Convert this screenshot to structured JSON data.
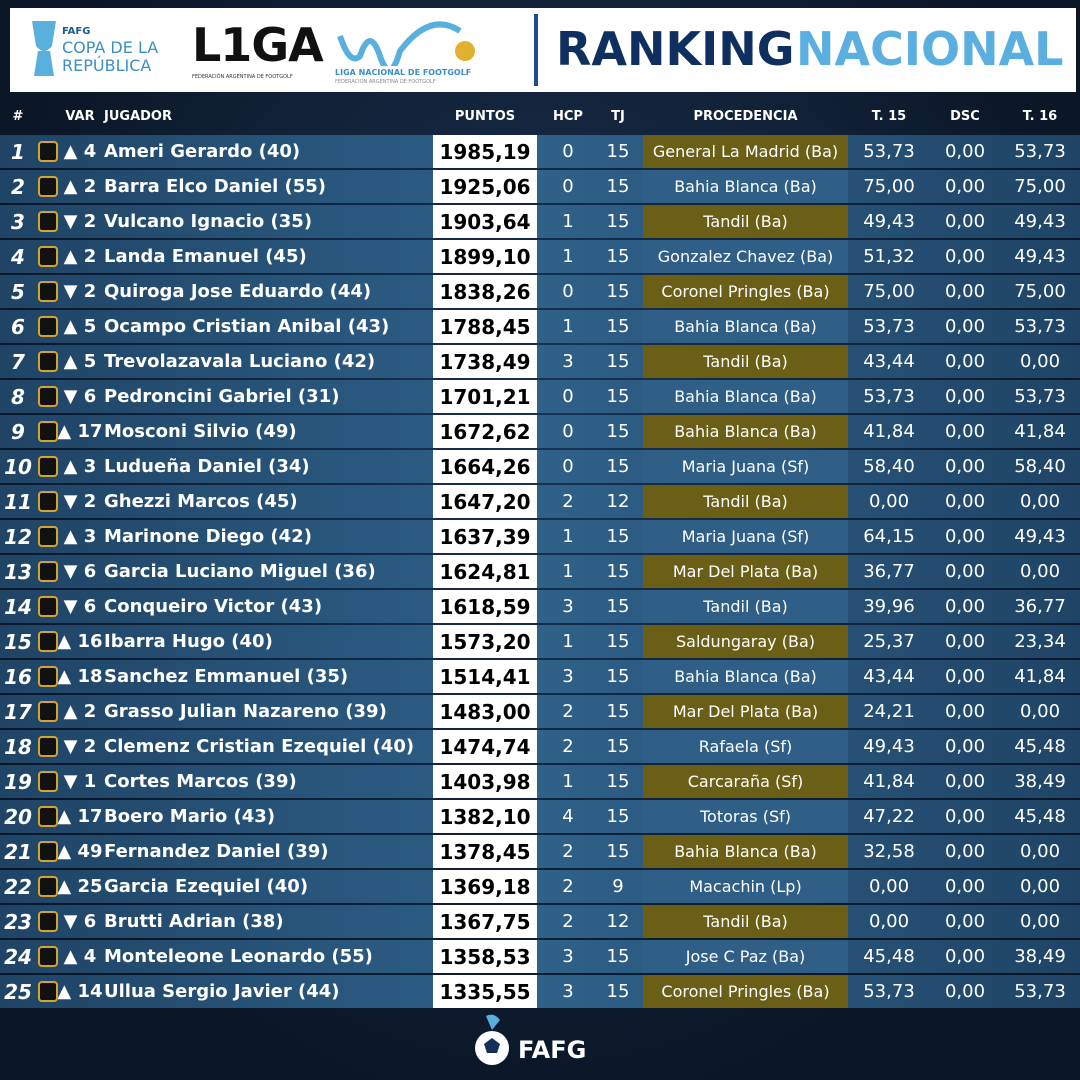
{
  "header": {
    "copa": {
      "fafg": "FAFG",
      "line1": "COPA DE LA",
      "line2": "REPÚBLICA"
    },
    "liga": {
      "name": "L1GA",
      "sub": "FEDERACIÓN ARGENTINA DE FOOTGOLF"
    },
    "liganac": {
      "name": "LIGA NACIONAL DE FOOTGOLF",
      "sub": "FEDERACION ARGENTINA DE FOOTGOLF"
    },
    "title1": "RANKING",
    "title2": "NACIONAL"
  },
  "table": {
    "columns": [
      "#",
      "VAR",
      "JUGADOR",
      "PUNTOS",
      "HCP",
      "TJ",
      "PROCEDENCIA",
      "T. 15",
      "DSC",
      "T. 16"
    ],
    "rows": [
      [
        "1",
        "▲ 4",
        "Ameri Gerardo (40)",
        "1985,19",
        "0",
        "15",
        "General La Madrid (Ba)",
        "53,73",
        "0,00",
        "53,73"
      ],
      [
        "2",
        "▲ 2",
        "Barra Elco Daniel (55)",
        "1925,06",
        "0",
        "15",
        "Bahia Blanca (Ba)",
        "75,00",
        "0,00",
        "75,00"
      ],
      [
        "3",
        "▼ 2",
        "Vulcano Ignacio (35)",
        "1903,64",
        "1",
        "15",
        "Tandil (Ba)",
        "49,43",
        "0,00",
        "49,43"
      ],
      [
        "4",
        "▲ 2",
        "Landa Emanuel (45)",
        "1899,10",
        "1",
        "15",
        "Gonzalez Chavez (Ba)",
        "51,32",
        "0,00",
        "49,43"
      ],
      [
        "5",
        "▼ 2",
        "Quiroga Jose Eduardo (44)",
        "1838,26",
        "0",
        "15",
        "Coronel Pringles (Ba)",
        "75,00",
        "0,00",
        "75,00"
      ],
      [
        "6",
        "▲ 5",
        "Ocampo Cristian Anibal (43)",
        "1788,45",
        "1",
        "15",
        "Bahia Blanca (Ba)",
        "53,73",
        "0,00",
        "53,73"
      ],
      [
        "7",
        "▲ 5",
        "Trevolazavala Luciano (42)",
        "1738,49",
        "3",
        "15",
        "Tandil (Ba)",
        "43,44",
        "0,00",
        "0,00"
      ],
      [
        "8",
        "▼ 6",
        "Pedroncini Gabriel (31)",
        "1701,21",
        "0",
        "15",
        "Bahia Blanca (Ba)",
        "53,73",
        "0,00",
        "53,73"
      ],
      [
        "9",
        "▲ 17",
        "Mosconi Silvio (49)",
        "1672,62",
        "0",
        "15",
        "Bahia Blanca (Ba)",
        "41,84",
        "0,00",
        "41,84"
      ],
      [
        "10",
        "▲ 3",
        "Ludueña Daniel (34)",
        "1664,26",
        "0",
        "15",
        "Maria Juana (Sf)",
        "58,40",
        "0,00",
        "58,40"
      ],
      [
        "11",
        "▼ 2",
        "Ghezzi Marcos (45)",
        "1647,20",
        "2",
        "12",
        "Tandil (Ba)",
        "0,00",
        "0,00",
        "0,00"
      ],
      [
        "12",
        "▲ 3",
        "Marinone Diego (42)",
        "1637,39",
        "1",
        "15",
        "Maria Juana (Sf)",
        "64,15",
        "0,00",
        "49,43"
      ],
      [
        "13",
        "▼ 6",
        "Garcia Luciano Miguel (36)",
        "1624,81",
        "1",
        "15",
        "Mar Del Plata (Ba)",
        "36,77",
        "0,00",
        "0,00"
      ],
      [
        "14",
        "▼ 6",
        "Conqueiro Victor (43)",
        "1618,59",
        "3",
        "15",
        "Tandil (Ba)",
        "39,96",
        "0,00",
        "36,77"
      ],
      [
        "15",
        "▲ 16",
        "Ibarra Hugo (40)",
        "1573,20",
        "1",
        "15",
        "Saldungaray (Ba)",
        "25,37",
        "0,00",
        "23,34"
      ],
      [
        "16",
        "▲ 18",
        "Sanchez Emmanuel (35)",
        "1514,41",
        "3",
        "15",
        "Bahia Blanca (Ba)",
        "43,44",
        "0,00",
        "41,84"
      ],
      [
        "17",
        "▲ 2",
        "Grasso Julian Nazareno (39)",
        "1483,00",
        "2",
        "15",
        "Mar Del Plata (Ba)",
        "24,21",
        "0,00",
        "0,00"
      ],
      [
        "18",
        "▼ 2",
        "Clemenz Cristian Ezequiel (40)",
        "1474,74",
        "2",
        "15",
        "Rafaela (Sf)",
        "49,43",
        "0,00",
        "45,48"
      ],
      [
        "19",
        "▼ 1",
        "Cortes Marcos (39)",
        "1403,98",
        "1",
        "15",
        "Carcaraña (Sf)",
        "41,84",
        "0,00",
        "38,49"
      ],
      [
        "20",
        "▲ 17",
        "Boero Mario (43)",
        "1382,10",
        "4",
        "15",
        "Totoras (Sf)",
        "47,22",
        "0,00",
        "45,48"
      ],
      [
        "21",
        "▲ 49",
        "Fernandez Daniel (39)",
        "1378,45",
        "2",
        "15",
        "Bahia Blanca (Ba)",
        "32,58",
        "0,00",
        "0,00"
      ],
      [
        "22",
        "▲ 25",
        "Garcia Ezequiel (40)",
        "1369,18",
        "2",
        "9",
        "Macachin (Lp)",
        "0,00",
        "0,00",
        "0,00"
      ],
      [
        "23",
        "▼ 6",
        "Brutti Adrian (38)",
        "1367,75",
        "2",
        "12",
        "Tandil (Ba)",
        "0,00",
        "0,00",
        "0,00"
      ],
      [
        "24",
        "▲ 4",
        "Monteleone Leonardo (55)",
        "1358,53",
        "3",
        "15",
        "Jose C Paz (Ba)",
        "45,48",
        "0,00",
        "38,49"
      ],
      [
        "25",
        "▲ 14",
        "Ullua Sergio Javier (44)",
        "1335,55",
        "3",
        "15",
        "Coronel Pringles (Ba)",
        "53,73",
        "0,00",
        "53,73"
      ]
    ]
  },
  "footer": {
    "brand": "FAFG"
  }
}
